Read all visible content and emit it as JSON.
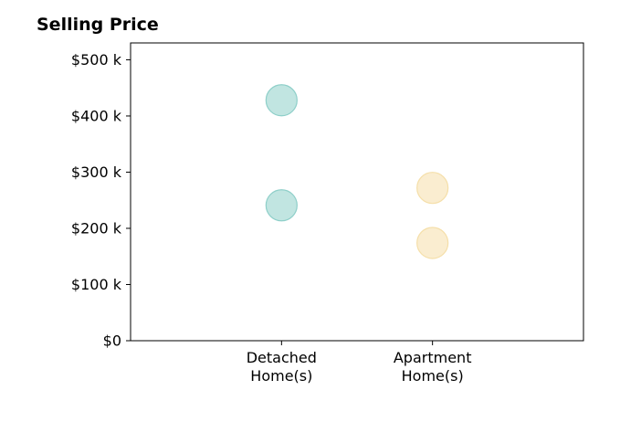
{
  "chart_data": {
    "type": "scatter",
    "title": "Selling Price",
    "xlabel": "",
    "ylabel": "",
    "categories": [
      {
        "line1": "Detached",
        "line2": "Home(s)"
      },
      {
        "line1": "Apartment",
        "line2": "Home(s)"
      }
    ],
    "x_range": [
      0,
      3
    ],
    "y_range": [
      0,
      530000
    ],
    "y_ticks": [
      {
        "value": 0,
        "label": "$0"
      },
      {
        "value": 100000,
        "label": "$100 k"
      },
      {
        "value": 200000,
        "label": "$200 k"
      },
      {
        "value": 300000,
        "label": "$300 k"
      },
      {
        "value": 400000,
        "label": "$400 k"
      },
      {
        "value": 500000,
        "label": "$500 k"
      }
    ],
    "points": [
      {
        "category_index": 0,
        "value": 428000,
        "color": "#8ecfc9"
      },
      {
        "category_index": 0,
        "value": 241000,
        "color": "#8ecfc9"
      },
      {
        "category_index": 1,
        "value": 272000,
        "color": "#f5dfa9"
      },
      {
        "category_index": 1,
        "value": 174000,
        "color": "#f5dfa9"
      }
    ],
    "grid": false,
    "legend": "none"
  }
}
